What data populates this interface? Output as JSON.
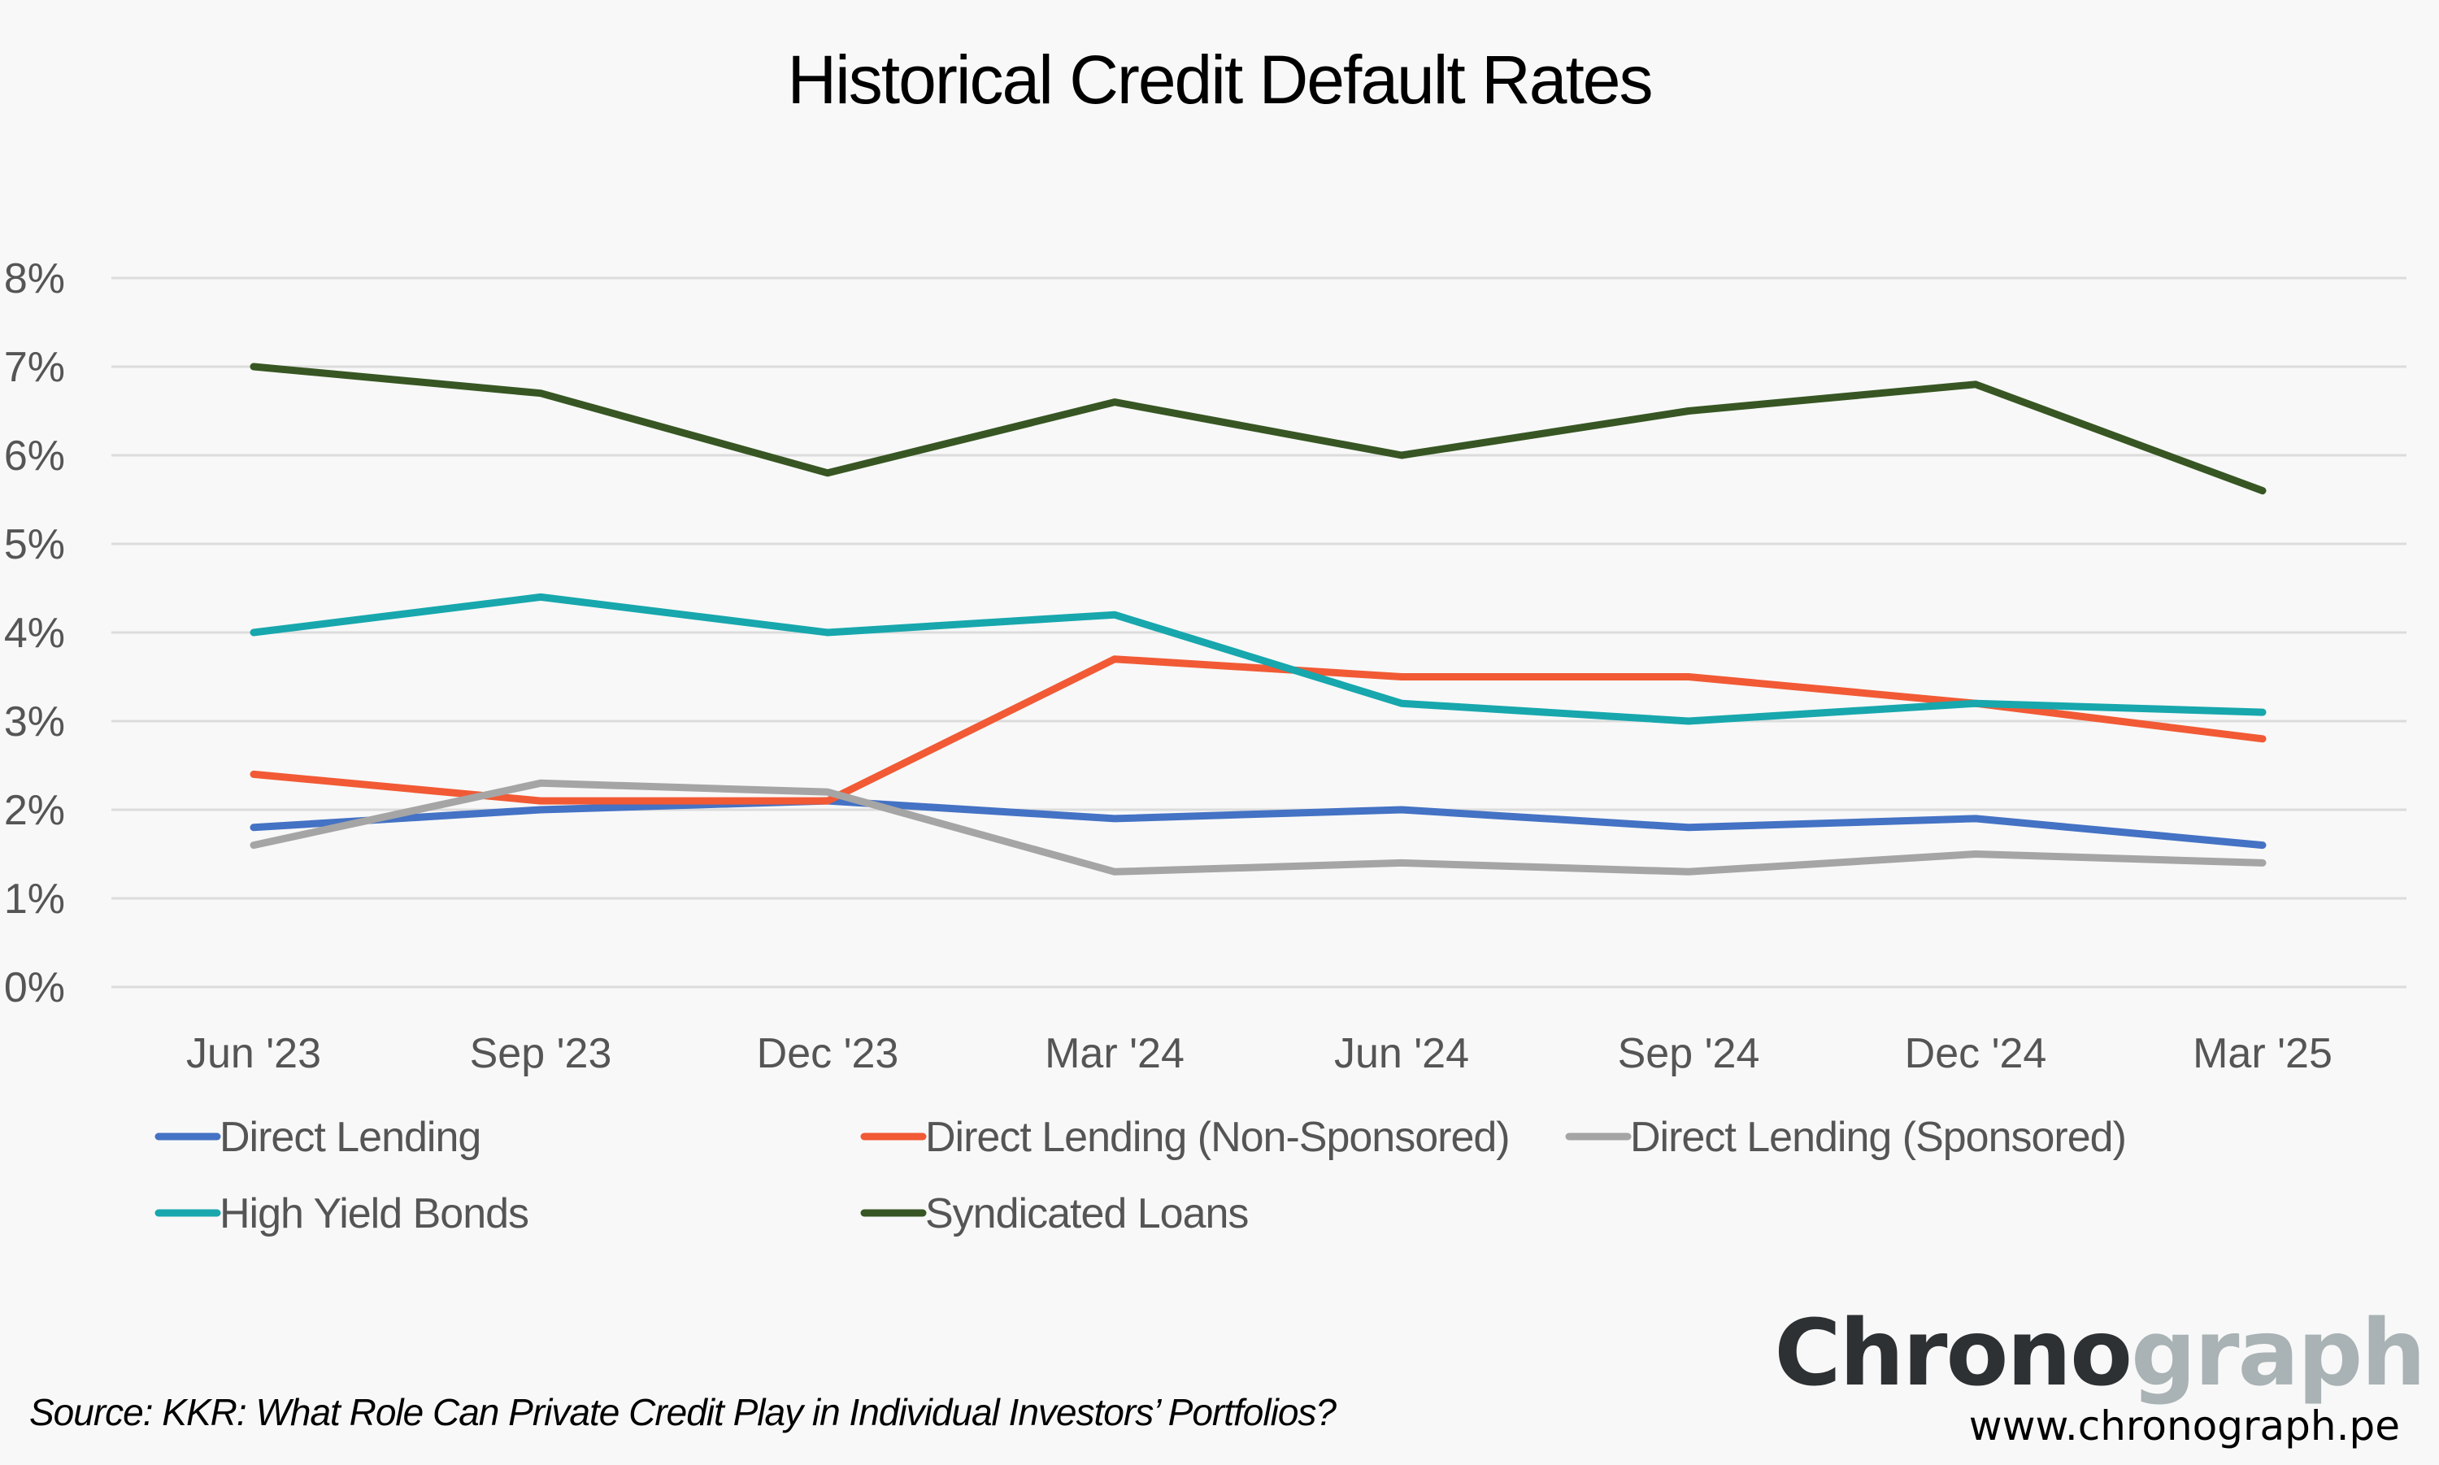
{
  "chart_data": {
    "type": "line",
    "title": "Historical Credit Default Rates",
    "xlabel": "",
    "ylabel": "",
    "ylim": [
      0,
      8
    ],
    "yticks": [
      "0%",
      "1%",
      "2%",
      "3%",
      "4%",
      "5%",
      "6%",
      "7%",
      "8%"
    ],
    "grid": true,
    "legend_position": "bottom",
    "categories": [
      "Jun '23",
      "Sep '23",
      "Dec '23",
      "Mar '24",
      "Jun '24",
      "Sep '24",
      "Dec '24",
      "Mar '25"
    ],
    "series": [
      {
        "name": "Direct Lending",
        "color": "#4472c4",
        "values": [
          1.8,
          2.0,
          2.1,
          1.9,
          2.0,
          1.8,
          1.9,
          1.6
        ]
      },
      {
        "name": "Direct Lending (Non-Sponsored)",
        "color": "#f15a35",
        "values": [
          2.4,
          2.1,
          2.1,
          3.7,
          3.5,
          3.5,
          3.2,
          2.8
        ]
      },
      {
        "name": "Direct Lending (Sponsored)",
        "color": "#a5a5a5",
        "values": [
          1.6,
          2.3,
          2.2,
          1.3,
          1.4,
          1.3,
          1.5,
          1.4
        ]
      },
      {
        "name": "High Yield Bonds",
        "color": "#17a7ad",
        "values": [
          4.0,
          4.4,
          4.0,
          4.2,
          3.2,
          3.0,
          3.2,
          3.1
        ]
      },
      {
        "name": "Syndicated Loans",
        "color": "#375623",
        "values": [
          7.0,
          6.7,
          5.8,
          6.6,
          6.0,
          6.5,
          6.8,
          5.6
        ]
      }
    ]
  },
  "footer": {
    "source": "Source: KKR: What Role Can Private Credit Play in Individual Investors’ Portfolios?",
    "logo_dark": "Chrono",
    "logo_light": "graph",
    "website": "www.chronograph.pe"
  }
}
